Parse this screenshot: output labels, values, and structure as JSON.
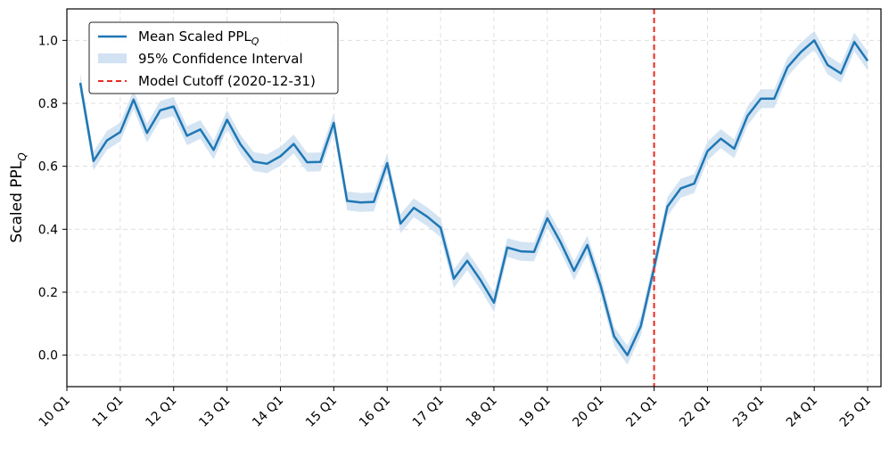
{
  "chart_data": {
    "type": "line",
    "ylabel_main": "Scaled PPL",
    "ylabel_sub": "Q",
    "ylim": [
      -0.1,
      1.1
    ],
    "yticks": [
      "0.0",
      "0.2",
      "0.4",
      "0.6",
      "0.8",
      "1.0"
    ],
    "ytick_values": [
      0.0,
      0.2,
      0.4,
      0.6,
      0.8,
      1.0
    ],
    "xticks": [
      "10 Q1",
      "11 Q1",
      "12 Q1",
      "13 Q1",
      "14 Q1",
      "15 Q1",
      "16 Q1",
      "17 Q1",
      "18 Q1",
      "19 Q1",
      "20 Q1",
      "21 Q1",
      "22 Q1",
      "23 Q1",
      "24 Q1",
      "25 Q1"
    ],
    "x_start_year": 2010,
    "x_end_year": 2025.25,
    "grid": true,
    "legend": {
      "position": "top-left",
      "entries": [
        {
          "label_main": "Mean Scaled PPL",
          "label_sub": "Q",
          "kind": "line"
        },
        {
          "label_main": "95% Confidence Interval",
          "label_sub": "",
          "kind": "band"
        },
        {
          "label_main": "Model Cutoff (2020-12-31)",
          "label_sub": "",
          "kind": "dashed"
        }
      ]
    },
    "cutoff_x": 2021.0,
    "colors": {
      "line": "#1f77b4",
      "band": "#c6dbef",
      "cutoff": "#e8291f"
    },
    "series": [
      {
        "name": "Mean Scaled PPL_Q",
        "x": [
          2010.25,
          2010.5,
          2010.75,
          2011.0,
          2011.25,
          2011.5,
          2011.75,
          2012.0,
          2012.25,
          2012.5,
          2012.75,
          2013.0,
          2013.25,
          2013.5,
          2013.75,
          2014.0,
          2014.25,
          2014.5,
          2014.75,
          2015.0,
          2015.25,
          2015.5,
          2015.75,
          2016.0,
          2016.25,
          2016.5,
          2016.75,
          2017.0,
          2017.25,
          2017.5,
          2017.75,
          2018.0,
          2018.25,
          2018.5,
          2018.75,
          2019.0,
          2019.25,
          2019.5,
          2019.75,
          2020.0,
          2020.25,
          2020.5,
          2020.75,
          2021.0,
          2021.25,
          2021.5,
          2021.75,
          2022.0,
          2022.25,
          2022.5,
          2022.75,
          2023.0,
          2023.25,
          2023.5,
          2023.75,
          2024.0,
          2024.25,
          2024.5,
          2024.75,
          2025.0
        ],
        "y": [
          0.865,
          0.617,
          0.682,
          0.709,
          0.812,
          0.706,
          0.778,
          0.79,
          0.697,
          0.717,
          0.652,
          0.748,
          0.67,
          0.615,
          0.608,
          0.632,
          0.671,
          0.613,
          0.614,
          0.738,
          0.49,
          0.485,
          0.487,
          0.61,
          0.418,
          0.468,
          0.44,
          0.405,
          0.243,
          0.3,
          0.238,
          0.167,
          0.342,
          0.33,
          0.328,
          0.435,
          0.358,
          0.268,
          0.35,
          0.22,
          0.06,
          0.0,
          0.092,
          0.278,
          0.472,
          0.53,
          0.545,
          0.648,
          0.688,
          0.656,
          0.76,
          0.815,
          0.815,
          0.915,
          0.963,
          1.0,
          0.922,
          0.895,
          0.995,
          0.935
        ],
        "ci_halfwidth": 0.03
      }
    ]
  }
}
